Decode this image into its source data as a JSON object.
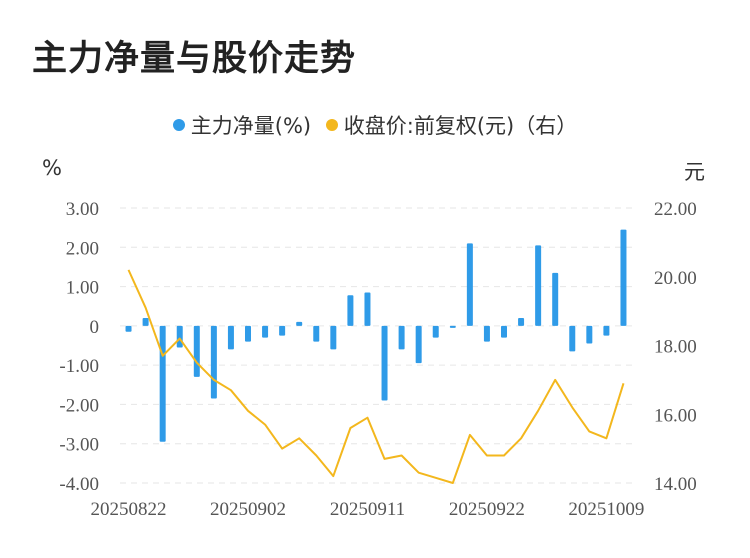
{
  "chart_data": {
    "type": "bar+line",
    "title": "主力净量与股价走势",
    "legend": [
      {
        "label": "主力净量(%)",
        "color": "#2f9be8"
      },
      {
        "label": "收盘价:前复权(元)（右）",
        "color": "#f3b71d"
      }
    ],
    "left_unit": "%",
    "right_unit": "元",
    "left_ylim": [
      -4,
      3
    ],
    "right_ylim": [
      14,
      22
    ],
    "left_ticks": [
      "3.00",
      "2.00",
      "1.00",
      "0",
      "-1.00",
      "-2.00",
      "-3.00",
      "-4.00"
    ],
    "left_tick_values": [
      3,
      2,
      1,
      0,
      -1,
      -2,
      -3,
      -4
    ],
    "right_ticks": [
      "22.00",
      "20.00",
      "18.00",
      "16.00",
      "14.00"
    ],
    "right_tick_values": [
      22,
      20,
      18,
      16,
      14
    ],
    "x_tick_labels": [
      "20250822",
      "20250902",
      "20250911",
      "20250922",
      "20251009"
    ],
    "x_tick_indices": [
      0,
      7,
      14,
      21,
      28
    ],
    "series": [
      {
        "name": "主力净量(%)",
        "kind": "bar",
        "axis": "left",
        "values": [
          -0.15,
          0.2,
          -2.95,
          -0.55,
          -1.3,
          -1.85,
          -0.6,
          -0.4,
          -0.3,
          -0.25,
          0.1,
          -0.4,
          -0.6,
          0.78,
          0.85,
          -1.9,
          -0.6,
          -0.95,
          -0.3,
          -0.05,
          2.1,
          -0.4,
          -0.3,
          0.2,
          2.05,
          1.35,
          -0.65,
          -0.45,
          -0.25,
          2.45
        ]
      },
      {
        "name": "收盘价:前复权(元)",
        "kind": "line",
        "axis": "right",
        "values": [
          20.2,
          19.1,
          17.7,
          18.2,
          17.5,
          17.0,
          16.7,
          16.1,
          15.7,
          15.0,
          15.3,
          14.8,
          14.2,
          15.6,
          15.9,
          14.7,
          14.8,
          14.3,
          14.15,
          14.0,
          15.4,
          14.8,
          14.8,
          15.3,
          16.1,
          17.0,
          16.2,
          15.5,
          15.3,
          16.9
        ]
      }
    ]
  }
}
